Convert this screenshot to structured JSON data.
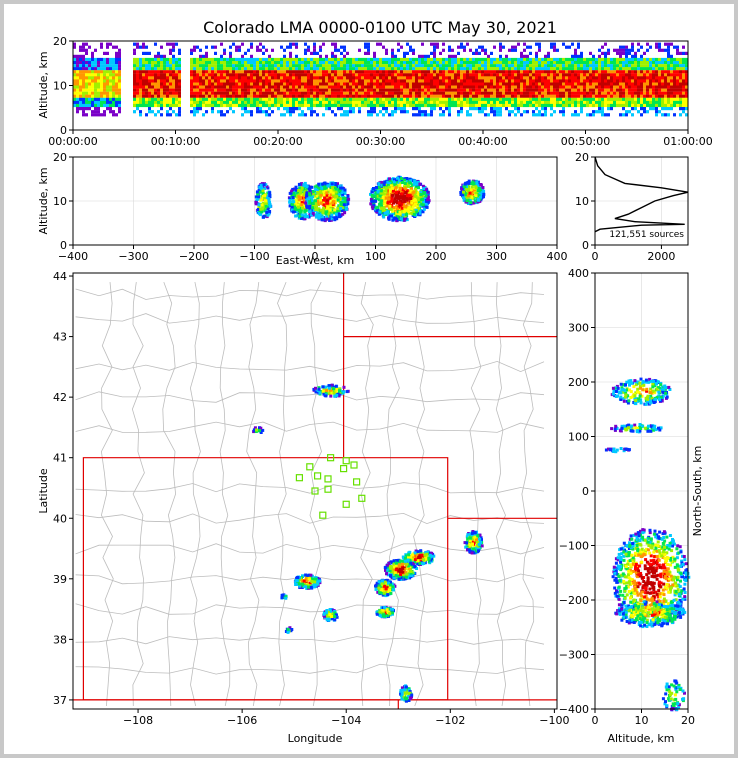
{
  "title": "Colorado LMA 0000-0100 UTC May 30, 2021",
  "chart_data": [
    {
      "name": "time-altitude",
      "type": "heatmap",
      "xlabel": "",
      "ylabel": "Altitude, km",
      "x_tick_labels": [
        "00:00:00",
        "00:10:00",
        "00:20:00",
        "00:30:00",
        "00:40:00",
        "00:50:00",
        "01:00:00"
      ],
      "x_range_minutes": [
        0,
        60
      ],
      "ylim": [
        0,
        20
      ],
      "y_ticks": [
        0,
        10,
        20
      ]
    },
    {
      "name": "east-west-altitude",
      "type": "heatmap",
      "xlabel": "East-West, km",
      "ylabel": "Altitude, km",
      "xlim": [
        -400,
        400
      ],
      "x_ticks": [
        -400,
        -300,
        -200,
        -100,
        0,
        100,
        200,
        300,
        400
      ],
      "ylim": [
        0,
        20
      ],
      "y_ticks": [
        0,
        10,
        20
      ],
      "clusters_x_km": [
        -85,
        -20,
        20,
        140,
        260
      ]
    },
    {
      "name": "altitude-histogram",
      "type": "line",
      "annotation": "121,551 sources",
      "xlim": [
        0,
        2800
      ],
      "x_ticks": [
        0,
        2000
      ],
      "ylim": [
        0,
        20
      ],
      "y_ticks": [
        0,
        10,
        20
      ],
      "profile": [
        [
          0,
          3
        ],
        [
          150,
          3.6
        ],
        [
          1400,
          4.5
        ],
        [
          2700,
          4.7
        ],
        [
          1200,
          5.3
        ],
        [
          600,
          6
        ],
        [
          1000,
          7
        ],
        [
          1400,
          8.5
        ],
        [
          1800,
          10
        ],
        [
          2350,
          11.2
        ],
        [
          2800,
          12
        ],
        [
          2000,
          13
        ],
        [
          900,
          14
        ],
        [
          300,
          16
        ],
        [
          80,
          18
        ],
        [
          0,
          20
        ]
      ]
    },
    {
      "name": "plan-view",
      "type": "heatmap",
      "xlabel": "Longitude",
      "ylabel": "Latitude",
      "xlim": [
        -109.25,
        -99.95
      ],
      "x_ticks": [
        -108,
        -106,
        -104,
        -102,
        -100
      ],
      "x_tick_labels": [
        "−108",
        "−106",
        "−104",
        "−102",
        "−100"
      ],
      "ylim": [
        36.85,
        44.05
      ],
      "y_ticks": [
        37,
        38,
        39,
        40,
        41,
        42,
        43,
        44
      ],
      "stations": [
        [
          -104.3,
          41.0
        ],
        [
          -104.0,
          40.95
        ],
        [
          -103.85,
          40.88
        ],
        [
          -104.7,
          40.85
        ],
        [
          -104.05,
          40.82
        ],
        [
          -104.55,
          40.7
        ],
        [
          -104.9,
          40.67
        ],
        [
          -104.35,
          40.65
        ],
        [
          -103.8,
          40.6
        ],
        [
          -104.35,
          40.48
        ],
        [
          -104.6,
          40.45
        ],
        [
          -103.7,
          40.33
        ],
        [
          -104.0,
          40.23
        ],
        [
          -104.45,
          40.05
        ]
      ]
    },
    {
      "name": "altitude-north-south",
      "type": "heatmap",
      "xlabel": "Altitude, km",
      "ylabel": "North-South, km",
      "xlim": [
        0,
        20
      ],
      "x_ticks": [
        0,
        10,
        20
      ],
      "ylim": [
        -400,
        400
      ],
      "y_ticks": [
        -400,
        -300,
        -200,
        -100,
        0,
        100,
        200,
        300,
        400
      ]
    }
  ]
}
